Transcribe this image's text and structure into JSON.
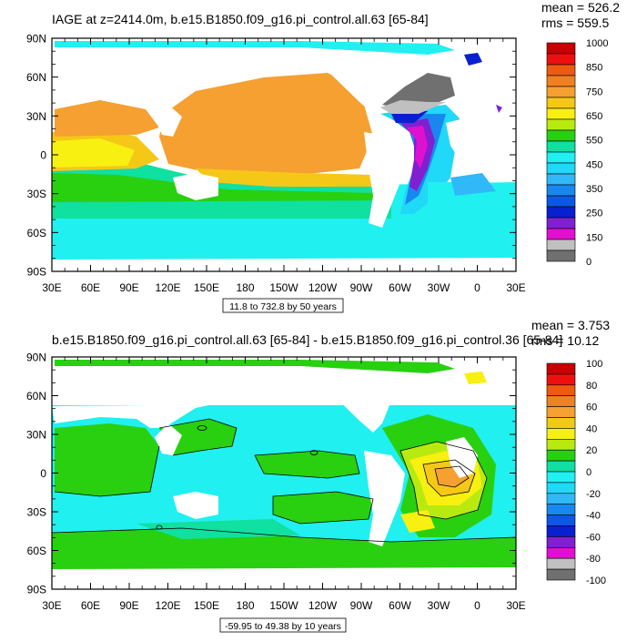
{
  "panels": [
    {
      "title": "IAGE at z=2414.0m, b.e15.B1850.f09_g16.pi_control.all.63 [65-84]",
      "mean_text": "mean = 526.2",
      "rms_text": "rms = 559.5",
      "range_text": "11.8 to 732.8 by 50 years",
      "lat_labels": [
        "90N",
        "60N",
        "30N",
        "0",
        "30S",
        "60S",
        "90S"
      ],
      "lon_labels": [
        "30E",
        "60E",
        "90E",
        "120E",
        "150E",
        "180",
        "150W",
        "120W",
        "90W",
        "60W",
        "30W",
        "0",
        "30E"
      ],
      "colorbar": {
        "labels": [
          "1000",
          "850",
          "750",
          "650",
          "550",
          "450",
          "350",
          "250",
          "150",
          "0"
        ],
        "colors": [
          "#c80000",
          "#ee1010",
          "#ee5a10",
          "#f08020",
          "#f5a030",
          "#f5c818",
          "#f8f010",
          "#b8ea10",
          "#28d010",
          "#10e0a0",
          "#20f0f0",
          "#20d8f8",
          "#30b8f8",
          "#1888f0",
          "#0c58e0",
          "#0820d0",
          "#8020d0",
          "#e010d0",
          "#c0c0c0",
          "#707070"
        ]
      }
    },
    {
      "title": "b.e15.B1850.f09_g16.pi_control.all.63 [65-84] - b.e15.B1850.f09_g16.pi_control.36 [65-84]",
      "mean_text": "mean = 3.753",
      "rms_text": "rms = 10.12",
      "range_text": "-59.95 to 49.38 by 10 years",
      "lat_labels": [
        "90N",
        "60N",
        "30N",
        "0",
        "30S",
        "60S",
        "90S"
      ],
      "lon_labels": [
        "30E",
        "60E",
        "90E",
        "120E",
        "150E",
        "180",
        "150W",
        "120W",
        "90W",
        "60W",
        "30W",
        "0",
        "30E"
      ],
      "colorbar": {
        "labels": [
          "100",
          "80",
          "60",
          "40",
          "20",
          "0",
          "-20",
          "-40",
          "-60",
          "-80",
          "-100"
        ],
        "colors": [
          "#c80000",
          "#ee1010",
          "#ee5a10",
          "#f08020",
          "#f5a030",
          "#f5c818",
          "#f8f010",
          "#b8ea10",
          "#28d010",
          "#10e0a0",
          "#20f0f0",
          "#20d8f8",
          "#30b8f8",
          "#1888f0",
          "#0c58e0",
          "#0820d0",
          "#8020d0",
          "#e010d0",
          "#c0c0c0",
          "#707070"
        ]
      }
    }
  ]
}
